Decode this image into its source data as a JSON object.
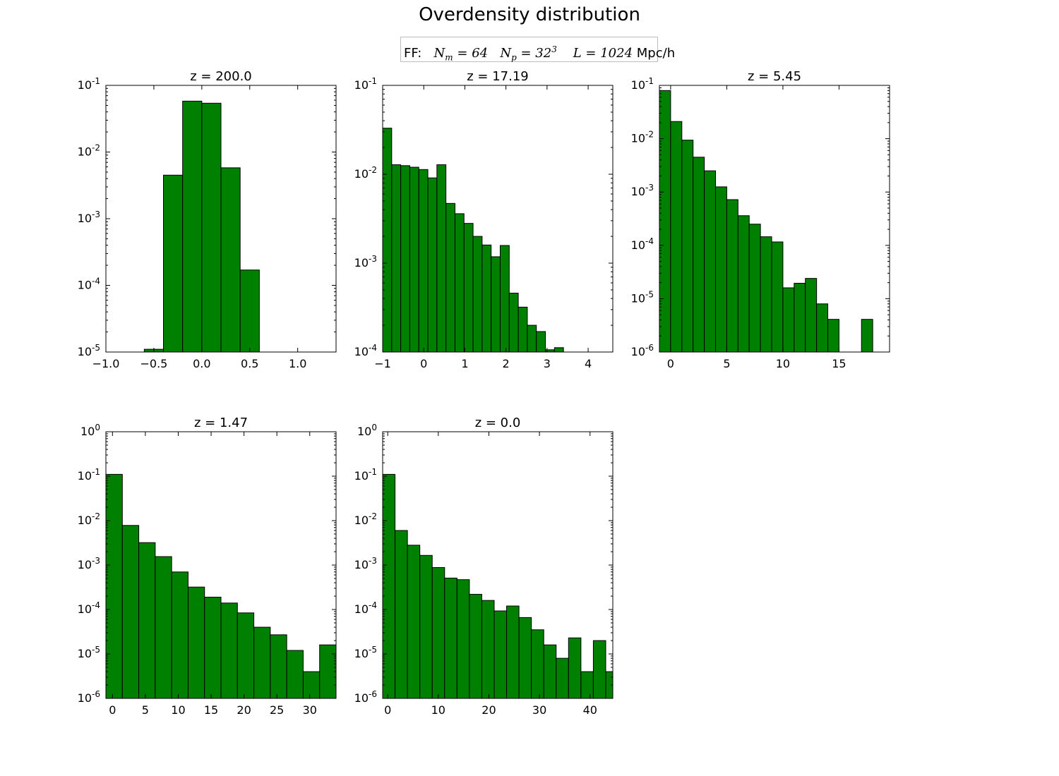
{
  "figure": {
    "title": "Overdensity distribution",
    "legend": {
      "prefix": "FF:",
      "nm_label": "N",
      "nm_sub": "m",
      "nm_value": "= 64",
      "np_label": "N",
      "np_sub": "p",
      "np_value": "= 32",
      "np_exp": "3",
      "l_label": "L",
      "l_value": "= 1024",
      "unit": "Mpc/h"
    },
    "bar_color": "#008000"
  },
  "chart_data": [
    {
      "type": "bar",
      "title": "z = 200.0",
      "xlim": [
        -1.0,
        1.4
      ],
      "ylim": [
        1e-05,
        0.1
      ],
      "yscale": "log",
      "bin_edges": [
        -0.8,
        -0.6,
        -0.4,
        -0.2,
        0.0,
        0.2,
        0.4,
        0.6
      ],
      "values": [
        0,
        1.1e-05,
        0.0045,
        0.058,
        0.054,
        0.0058,
        0.00017
      ],
      "xticks": [
        -1.0,
        -0.5,
        0.0,
        0.5,
        1.0
      ],
      "xtick_labels": [
        "−1.0",
        "−0.5",
        "0.0",
        "0.5",
        "1.0"
      ],
      "ytick_exponents": [
        -5,
        -4,
        -3,
        -2,
        -1
      ]
    },
    {
      "type": "bar",
      "title": "z = 17.19",
      "xlim": [
        -1,
        4.6
      ],
      "ylim": [
        0.0001,
        0.1
      ],
      "yscale": "log",
      "bin_edges": [
        -1.0,
        -0.78,
        -0.56,
        -0.34,
        -0.12,
        0.1,
        0.32,
        0.54,
        0.76,
        0.98,
        1.2,
        1.42,
        1.64,
        1.86,
        2.08,
        2.3,
        2.52,
        2.74,
        2.96,
        3.18,
        3.4,
        3.62
      ],
      "values": [
        0.033,
        0.0128,
        0.0125,
        0.012,
        0.0113,
        0.0091,
        0.0128,
        0.0047,
        0.0036,
        0.0028,
        0.002,
        0.0016,
        0.00118,
        0.00158,
        0.00046,
        0.00032,
        0.0002,
        0.00017,
        0.000106,
        0.000112,
        0
      ],
      "xticks": [
        -1,
        0,
        1,
        2,
        3,
        4
      ],
      "xtick_labels": [
        "−1",
        "0",
        "1",
        "2",
        "3",
        "4"
      ],
      "ytick_exponents": [
        -4,
        -3,
        -2,
        -1
      ]
    },
    {
      "type": "bar",
      "title": "z = 5.45",
      "xlim": [
        -1,
        19.5
      ],
      "ylim": [
        1e-06,
        0.1
      ],
      "yscale": "log",
      "bin_edges": [
        -1.0,
        0.0,
        1.0,
        2.0,
        3.0,
        4.0,
        5.0,
        6.0,
        7.0,
        8.0,
        9.0,
        10.0,
        11.0,
        12.0,
        13.0,
        14.0,
        15.0,
        16.0,
        17.0,
        18.0
      ],
      "values": [
        0.08,
        0.021,
        0.0094,
        0.0045,
        0.0025,
        0.00125,
        0.00072,
        0.00036,
        0.00025,
        0.000145,
        0.000116,
        1.6e-05,
        1.95e-05,
        2.4e-05,
        8e-06,
        4.1e-06,
        0,
        0,
        4.1e-06
      ],
      "xticks": [
        0,
        5,
        10,
        15
      ],
      "xtick_labels": [
        "0",
        "5",
        "10",
        "15"
      ],
      "ytick_exponents": [
        -6,
        -5,
        -4,
        -3,
        -2,
        -1
      ]
    },
    {
      "type": "bar",
      "title": "z = 1.47",
      "xlim": [
        -1,
        34
      ],
      "ylim": [
        1e-06,
        1
      ],
      "yscale": "log",
      "bin_edges": [
        -1.0,
        1.5,
        4.0,
        6.5,
        9.0,
        11.5,
        14.0,
        16.5,
        19.0,
        21.5,
        24.0,
        26.5,
        29.0,
        31.5,
        34.0
      ],
      "values": [
        0.11,
        0.0078,
        0.0032,
        0.00155,
        0.0007,
        0.00032,
        0.00019,
        0.00014,
        8.4e-05,
        4e-05,
        2.7e-05,
        1.2e-05,
        4e-06,
        1.6e-05
      ],
      "xticks": [
        0,
        5,
        10,
        15,
        20,
        25,
        30
      ],
      "xtick_labels": [
        "0",
        "5",
        "10",
        "15",
        "20",
        "25",
        "30"
      ],
      "ytick_exponents": [
        -6,
        -5,
        -4,
        -3,
        -2,
        -1,
        0
      ]
    },
    {
      "type": "bar",
      "title": "z = 0.0",
      "xlim": [
        -1,
        44.5
      ],
      "ylim": [
        1e-06,
        1
      ],
      "yscale": "log",
      "bin_edges": [
        -1.0,
        1.45,
        3.9,
        6.35,
        8.8,
        11.25,
        13.7,
        16.15,
        18.6,
        21.05,
        23.5,
        25.95,
        28.4,
        30.85,
        33.3,
        35.75,
        38.2,
        40.65,
        43.1,
        45.55
      ],
      "values": [
        0.11,
        0.006,
        0.0028,
        0.00165,
        0.00088,
        0.00051,
        0.00047,
        0.00022,
        0.00016,
        9.3e-05,
        0.00012,
        6.6e-05,
        3.5e-05,
        1.6e-05,
        8e-06,
        2.3e-05,
        4e-06,
        2e-05,
        4e-06
      ],
      "xticks": [
        0,
        10,
        20,
        30,
        40
      ],
      "xtick_labels": [
        "0",
        "10",
        "20",
        "30",
        "40"
      ],
      "ytick_exponents": [
        -6,
        -5,
        -4,
        -3,
        -2,
        -1,
        0
      ]
    }
  ]
}
